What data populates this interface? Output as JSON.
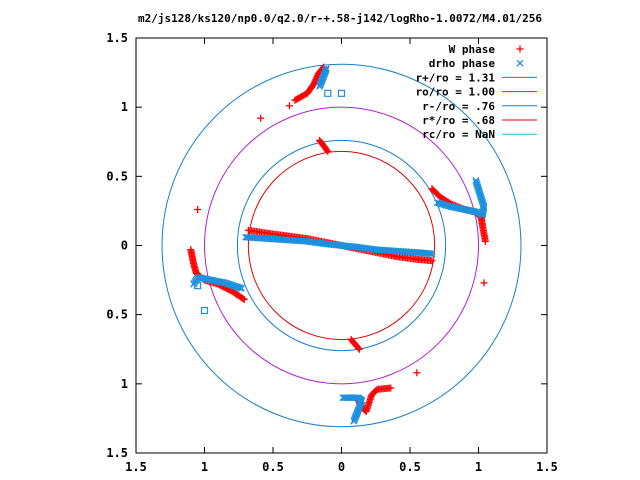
{
  "chart_data": {
    "type": "scatter",
    "title": "m2/js128/ks120/np0.0/q2.0/r-+.58-j142/logRho-1.0072/M4.01/256",
    "xlim": [
      -1.5,
      1.5
    ],
    "ylim": [
      -1.5,
      1.5
    ],
    "x_tick_labels": [
      "1.5",
      "1",
      "0.5",
      "0",
      "0.5",
      "1",
      "1.5"
    ],
    "y_tick_labels": [
      "1.5",
      "1",
      "0.5",
      "0",
      "0.5",
      "1",
      "1.5"
    ],
    "legend_position": "top-right",
    "colors": {
      "w_phase": "#ff0000",
      "drho_phase": "#1e90dd",
      "r_plus": "#1a80c8",
      "ro": "#b020d0",
      "r_minus": "#1a80c8",
      "r_star": "#e00000",
      "rc": "#20c0d0"
    },
    "circles": [
      {
        "name": "r+/ro = 1.31",
        "radius": 1.31,
        "color_key": "r_plus"
      },
      {
        "name": "ro/ro = 1.00",
        "radius": 1.0,
        "color_key": "ro"
      },
      {
        "name": "r-/ro = .76",
        "radius": 0.76,
        "color_key": "r_minus"
      },
      {
        "name": "r*/ro = .68",
        "radius": 0.68,
        "color_key": "r_star"
      },
      {
        "name": "rc/ro = NaN",
        "radius": null,
        "color_key": "rc"
      }
    ],
    "series": [
      {
        "name": "W phase",
        "marker": "+",
        "color_key": "w_phase",
        "points": [
          [
            -0.68,
            0.11
          ],
          [
            -0.55,
            0.09
          ],
          [
            -0.4,
            0.07
          ],
          [
            -0.25,
            0.05
          ],
          [
            -0.1,
            0.02
          ],
          [
            0.0,
            0.0
          ],
          [
            0.1,
            -0.02
          ],
          [
            0.25,
            -0.05
          ],
          [
            0.4,
            -0.08
          ],
          [
            0.55,
            -0.1
          ],
          [
            0.66,
            -0.11
          ],
          [
            0.66,
            0.41
          ],
          [
            0.72,
            0.35
          ],
          [
            0.8,
            0.3
          ],
          [
            0.9,
            0.26
          ],
          [
            0.98,
            0.24
          ],
          [
            1.02,
            0.2
          ],
          [
            1.03,
            0.14
          ],
          [
            1.05,
            0.03
          ],
          [
            1.04,
            -0.27
          ],
          [
            -0.71,
            -0.39
          ],
          [
            -0.8,
            -0.33
          ],
          [
            -0.9,
            -0.28
          ],
          [
            -1.0,
            -0.25
          ],
          [
            -1.06,
            -0.2
          ],
          [
            -1.08,
            -0.13
          ],
          [
            -1.09,
            -0.08
          ],
          [
            -1.1,
            -0.03
          ],
          [
            -1.05,
            0.26
          ],
          [
            -0.34,
            1.05
          ],
          [
            -0.25,
            1.1
          ],
          [
            -0.2,
            1.17
          ],
          [
            -0.17,
            1.24
          ],
          [
            -0.13,
            1.29
          ],
          [
            -0.38,
            1.01
          ],
          [
            -0.59,
            0.92
          ],
          [
            -0.16,
            0.76
          ],
          [
            -0.1,
            0.68
          ],
          [
            0.12,
            -1.12
          ],
          [
            0.15,
            -1.17
          ],
          [
            0.18,
            -1.2
          ],
          [
            0.22,
            -1.08
          ],
          [
            0.26,
            -1.04
          ],
          [
            0.36,
            -1.03
          ],
          [
            0.55,
            -0.92
          ],
          [
            0.07,
            -0.68
          ],
          [
            0.13,
            -0.75
          ]
        ]
      },
      {
        "name": "drho phase",
        "marker": "x",
        "color_key": "drho_phase",
        "points": [
          [
            -0.7,
            0.06
          ],
          [
            -0.55,
            0.05
          ],
          [
            -0.4,
            0.04
          ],
          [
            -0.25,
            0.03
          ],
          [
            -0.1,
            0.01
          ],
          [
            0.0,
            0.0
          ],
          [
            0.1,
            -0.01
          ],
          [
            0.25,
            -0.03
          ],
          [
            0.4,
            -0.04
          ],
          [
            0.55,
            -0.05
          ],
          [
            0.66,
            -0.06
          ],
          [
            0.7,
            0.31
          ],
          [
            0.8,
            0.28
          ],
          [
            0.9,
            0.26
          ],
          [
            1.0,
            0.24
          ],
          [
            1.03,
            0.22
          ],
          [
            1.04,
            0.28
          ],
          [
            0.98,
            0.47
          ],
          [
            -0.73,
            -0.31
          ],
          [
            -0.85,
            -0.27
          ],
          [
            -0.95,
            -0.25
          ],
          [
            -1.05,
            -0.23
          ],
          [
            -1.08,
            -0.28
          ],
          [
            -0.16,
            1.15
          ],
          [
            -0.14,
            1.2
          ],
          [
            -0.12,
            1.25
          ],
          [
            -0.11,
            1.28
          ],
          [
            0.09,
            -1.27
          ],
          [
            0.11,
            -1.22
          ],
          [
            0.13,
            -1.17
          ],
          [
            0.15,
            -1.12
          ],
          [
            0.12,
            -1.1
          ],
          [
            0.01,
            -1.1
          ]
        ]
      }
    ],
    "extra_markers": [
      {
        "shape": "square",
        "color_key": "drho_phase",
        "points": [
          [
            -0.1,
            1.1
          ],
          [
            0.0,
            1.1
          ],
          [
            -1.0,
            -0.47
          ],
          [
            -1.05,
            -0.29
          ]
        ]
      }
    ]
  }
}
